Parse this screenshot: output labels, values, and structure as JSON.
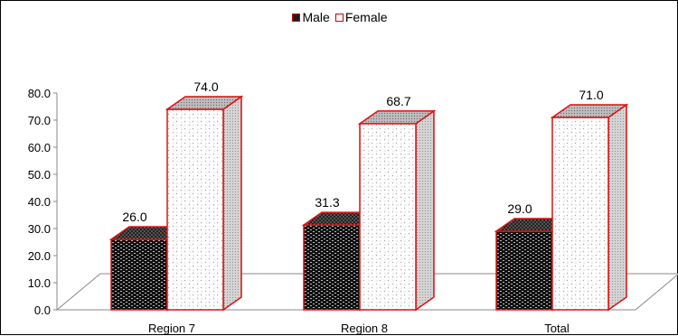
{
  "chart_data": {
    "type": "bar",
    "categories": [
      "Region 7",
      "Region 8",
      "Total"
    ],
    "series": [
      {
        "name": "Male",
        "values": [
          26.0,
          31.3,
          29.0
        ],
        "value_labels": [
          "26.0",
          "31.3",
          "29.0"
        ]
      },
      {
        "name": "Female",
        "values": [
          74.0,
          68.7,
          71.0
        ],
        "value_labels": [
          "74.0",
          "68.7",
          "71.0"
        ]
      }
    ],
    "y_ticks": [
      "0.0",
      "10.0",
      "20.0",
      "30.0",
      "40.0",
      "50.0",
      "60.0",
      "70.0",
      "80.0"
    ],
    "ylim": [
      0,
      80
    ],
    "legend": "top-center",
    "grid": false,
    "style": "3d-column",
    "colors": {
      "outline": "#dd1111",
      "male_fill": "#1a1a1a",
      "female_fill": "#ffffff",
      "floor": "#888888"
    }
  }
}
